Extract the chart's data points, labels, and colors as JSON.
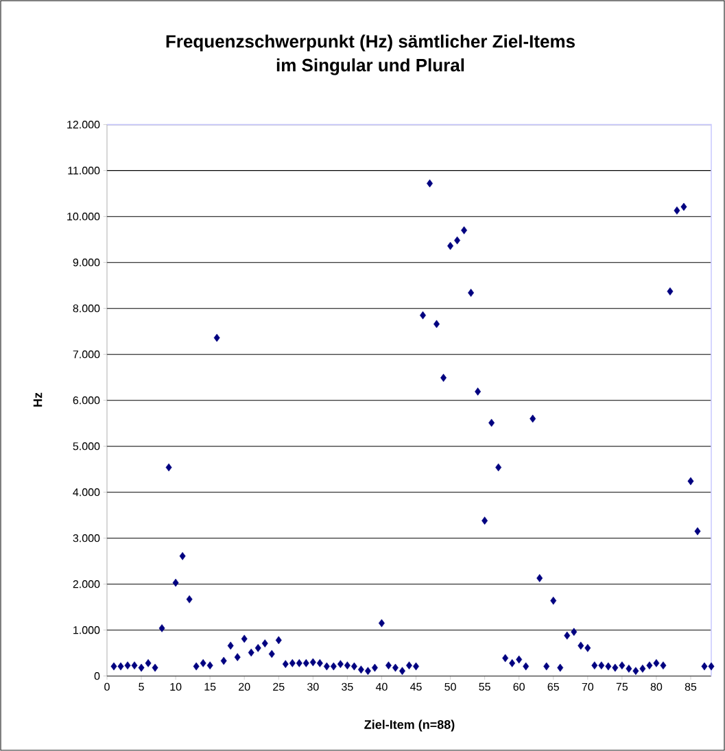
{
  "chart_data": {
    "type": "scatter",
    "title": "Frequenzschwerpunkt (Hz) sämtlicher Ziel-Items\nim Singular und Plural",
    "xlabel": "Ziel-Item (n=88)",
    "ylabel": "Hz",
    "x": [
      1,
      2,
      3,
      4,
      5,
      6,
      7,
      8,
      9,
      10,
      11,
      12,
      13,
      14,
      15,
      16,
      17,
      18,
      19,
      20,
      21,
      22,
      23,
      24,
      25,
      26,
      27,
      28,
      29,
      30,
      31,
      32,
      33,
      34,
      35,
      36,
      37,
      38,
      39,
      40,
      41,
      42,
      43,
      44,
      45,
      46,
      47,
      48,
      49,
      50,
      51,
      52,
      53,
      54,
      55,
      56,
      57,
      58,
      59,
      60,
      61,
      62,
      63,
      64,
      65,
      66,
      67,
      68,
      69,
      70,
      71,
      72,
      73,
      74,
      75,
      76,
      77,
      78,
      79,
      80,
      81,
      82,
      83,
      84,
      85,
      86,
      87,
      88
    ],
    "series": [
      {
        "color": "#000080",
        "values": [
          210,
          210,
          230,
          230,
          180,
          280,
          180,
          1040,
          4540,
          2030,
          2610,
          1670,
          210,
          280,
          230,
          7360,
          330,
          660,
          410,
          810,
          510,
          610,
          710,
          480,
          780,
          260,
          280,
          280,
          280,
          300,
          280,
          210,
          210,
          260,
          230,
          210,
          140,
          110,
          180,
          1150,
          230,
          180,
          110,
          230,
          210,
          7850,
          10720,
          7660,
          6490,
          9360,
          9480,
          9700,
          8340,
          6190,
          3380,
          5510,
          4540,
          390,
          280,
          360,
          210,
          5600,
          2130,
          210,
          1640,
          180,
          880,
          960,
          660,
          610,
          230,
          230,
          210,
          180,
          230,
          160,
          110,
          160,
          230,
          280,
          230,
          8370,
          10130,
          10210,
          4240,
          3150,
          210,
          210
        ]
      }
    ],
    "xlim": [
      0,
      88
    ],
    "ylim": [
      0,
      12000
    ],
    "xticks": [
      0,
      5,
      10,
      15,
      20,
      25,
      30,
      35,
      40,
      45,
      50,
      55,
      60,
      65,
      70,
      75,
      80,
      85
    ],
    "yticks": [
      0,
      {
        "value": 1000,
        "label": "1.000"
      },
      {
        "value": 2000,
        "label": "2.000"
      },
      {
        "value": 3000,
        "label": "3.000"
      },
      {
        "value": 4000,
        "label": "4.000"
      },
      {
        "value": 5000,
        "label": "5.000"
      },
      {
        "value": 6000,
        "label": "6.000"
      },
      {
        "value": 7000,
        "label": "7.000"
      },
      {
        "value": 8000,
        "label": "8.000"
      },
      {
        "value": 9000,
        "label": "9.000"
      },
      {
        "value": 10000,
        "label": "10.000"
      },
      {
        "value": 11000,
        "label": "11.000"
      },
      {
        "value": 12000,
        "label": "12.000"
      }
    ],
    "grid": "y",
    "marker": "diamond"
  }
}
